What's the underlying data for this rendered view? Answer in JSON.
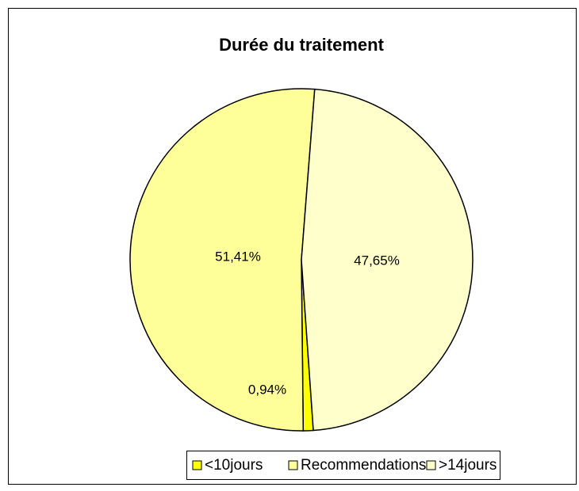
{
  "chart_data": {
    "type": "pie",
    "title": "Durée du traitement",
    "categories": [
      "<10jours",
      "Recommendations",
      ">14jours"
    ],
    "values": [
      0.94,
      51.41,
      47.65
    ],
    "value_labels": [
      "0,94%",
      "51,41%",
      "47,65%"
    ],
    "colors": [
      "#ffff00",
      "#ffff99",
      "#ffffcc"
    ],
    "legend": "bottom"
  }
}
